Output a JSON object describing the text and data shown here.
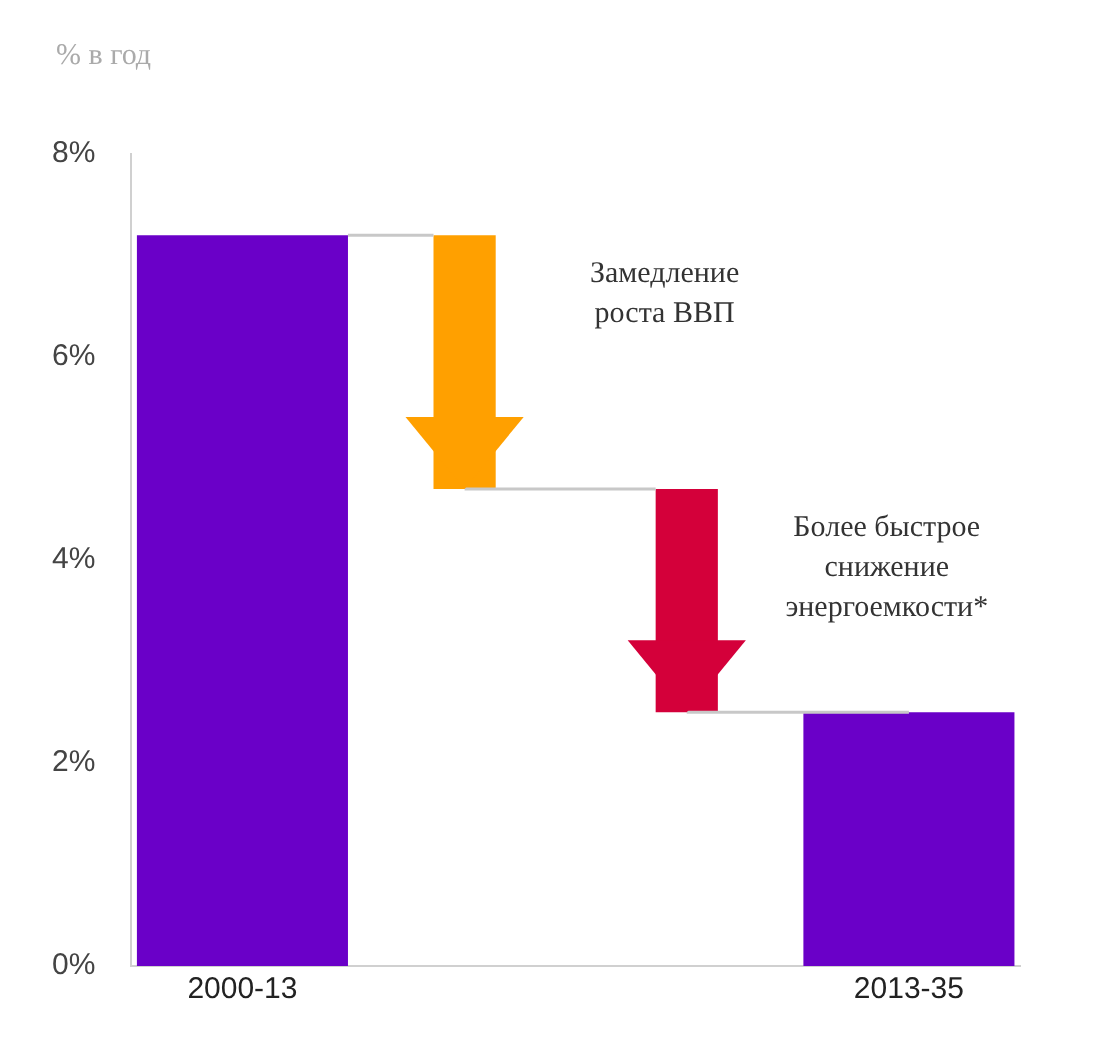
{
  "chart_data": {
    "type": "bar",
    "ylabel": "% в год",
    "categories": [
      "2000-13",
      null,
      null,
      "2013-35"
    ],
    "values": [
      7.2,
      -2.5,
      -2.2,
      2.5
    ],
    "base": [
      0,
      7.2,
      4.7,
      0
    ],
    "colors": [
      "#6a00c8",
      "#ffa000",
      "#d4003a",
      "#6a00c8"
    ],
    "ylim": [
      0,
      8
    ],
    "yticks": [
      {
        "value": 0,
        "label": "0%"
      },
      {
        "value": 2,
        "label": "2%"
      },
      {
        "value": 4,
        "label": "4%"
      },
      {
        "value": 6,
        "label": "6%"
      },
      {
        "value": 8,
        "label": "8%"
      }
    ],
    "annotations": [
      "Замедление роста ВВП",
      "Более быстрое снижение энергоемкости*"
    ],
    "grid": false
  }
}
